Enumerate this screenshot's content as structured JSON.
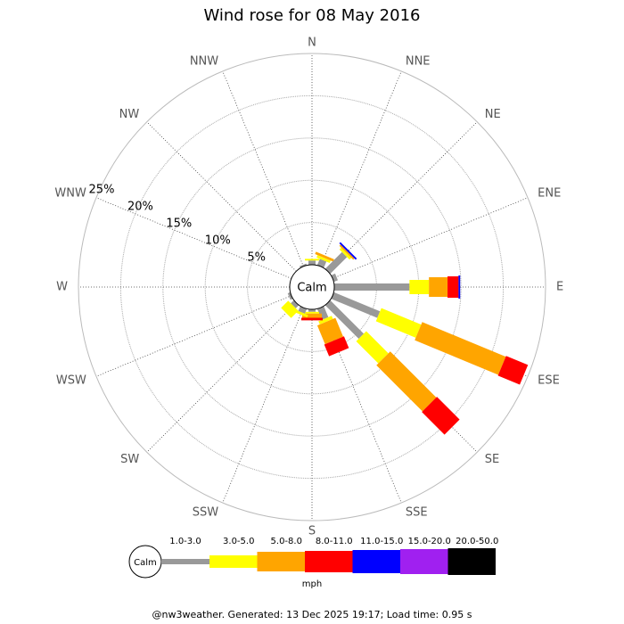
{
  "chart_data": {
    "type": "windrose",
    "title": "Wind rose for 08 May 2016",
    "categories": [
      "N",
      "NNE",
      "NE",
      "ENE",
      "E",
      "ESE",
      "SE",
      "SSE",
      "S",
      "SSW",
      "SW",
      "WSW",
      "W",
      "WNW",
      "NW",
      "NNW"
    ],
    "series": [
      {
        "name": "1.0-3.0",
        "color": "#999999",
        "values": [
          0.5,
          0.8,
          2.8,
          0.5,
          8.9,
          5.9,
          5.6,
          1.4,
          0.3,
          0.6,
          0.5,
          0.3,
          0,
          0,
          0,
          0.2
        ]
      },
      {
        "name": "3.0-5.0",
        "color": "#ffff00",
        "values": [
          0.2,
          0.3,
          0.3,
          0,
          2.3,
          5.1,
          3.7,
          0.4,
          0.2,
          0.3,
          1.2,
          0,
          0,
          0,
          0,
          0
        ]
      },
      {
        "name": "5.0-8.0",
        "color": "#ffa500",
        "values": [
          0,
          0.3,
          0.2,
          0,
          2.2,
          10.7,
          7.7,
          2.4,
          0.5,
          0,
          0,
          0,
          0,
          0,
          0,
          0
        ]
      },
      {
        "name": "8.0-11.0",
        "color": "#ff0000",
        "values": [
          0,
          0,
          0,
          0,
          1.3,
          2.8,
          3.8,
          1.5,
          0.3,
          0,
          0,
          0,
          0,
          0,
          0,
          0
        ]
      },
      {
        "name": "11.0-15.0",
        "color": "#0000ff",
        "values": [
          0,
          0,
          0.2,
          0,
          0.2,
          0,
          0,
          0,
          0,
          0,
          0,
          0,
          0,
          0,
          0,
          0
        ]
      },
      {
        "name": "15.0-20.0",
        "color": "#a020f0",
        "values": [
          0,
          0,
          0,
          0,
          0,
          0,
          0,
          0,
          0,
          0,
          0,
          0,
          0,
          0,
          0,
          0
        ]
      },
      {
        "name": "20.0-50.0",
        "color": "#000000",
        "values": [
          0,
          0,
          0,
          0,
          0,
          0,
          0,
          0,
          0,
          0,
          0,
          0,
          0,
          0,
          0,
          0
        ]
      }
    ],
    "rlim": [
      0,
      25
    ],
    "rticks": [
      {
        "value": 5,
        "label": "5%"
      },
      {
        "value": 10,
        "label": "10%"
      },
      {
        "value": 15,
        "label": "15%"
      },
      {
        "value": 20,
        "label": "20%"
      },
      {
        "value": 25,
        "label": "25%"
      }
    ],
    "calm_label": "Calm",
    "unit_label": "mph",
    "footer": "@nw3weather. Generated: 13 Dec 2025 19:17; Load time: 0.95 s"
  }
}
